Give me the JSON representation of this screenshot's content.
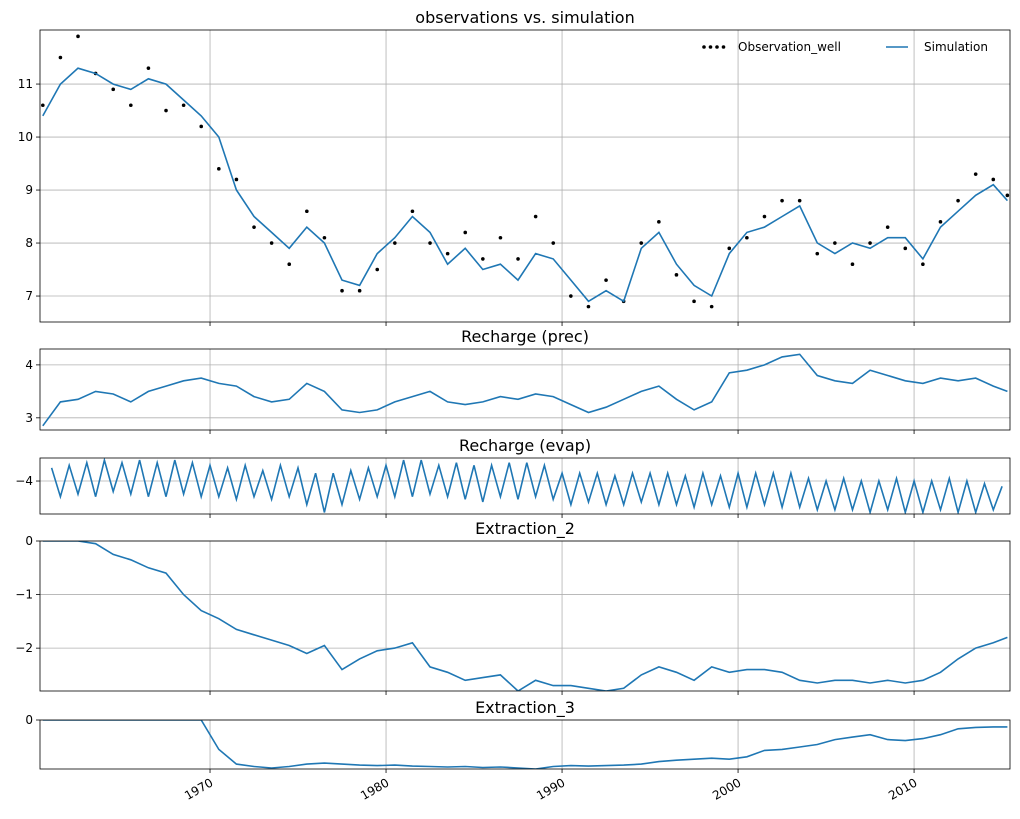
{
  "chart_data": [
    {
      "type": "line",
      "title": "observations vs. simulation",
      "legend": "upper right",
      "grid": true,
      "x": [
        1960.5,
        1961.5,
        1962.5,
        1963.5,
        1964.5,
        1965.5,
        1966.5,
        1967.5,
        1968.5,
        1969.5,
        1970.5,
        1971.5,
        1972.5,
        1973.5,
        1974.5,
        1975.5,
        1976.5,
        1977.5,
        1978.5,
        1979.5,
        1980.5,
        1981.5,
        1982.5,
        1983.5,
        1984.5,
        1985.5,
        1986.5,
        1987.5,
        1988.5,
        1989.5,
        1990.5,
        1991.5,
        1992.5,
        1993.5,
        1994.5,
        1995.5,
        1996.5,
        1997.5,
        1998.5,
        1999.5,
        2000.5,
        2001.5,
        2002.5,
        2003.5,
        2004.5,
        2005.5,
        2006.5,
        2007.5,
        2008.5,
        2009.5,
        2010.5,
        2011.5,
        2012.5,
        2013.5,
        2014.5,
        2015.3
      ],
      "series": [
        {
          "name": "Observation_well",
          "color": "#000000",
          "linestyle": "dotted",
          "values": [
            10.6,
            11.5,
            11.9,
            11.2,
            10.9,
            10.6,
            11.3,
            10.5,
            10.6,
            10.2,
            9.4,
            9.2,
            8.3,
            8.0,
            7.6,
            8.6,
            8.1,
            7.1,
            7.1,
            7.5,
            8.0,
            8.6,
            8.0,
            7.8,
            8.2,
            7.7,
            8.1,
            7.7,
            8.5,
            8.0,
            7.0,
            6.8,
            7.3,
            6.9,
            8.0,
            8.4,
            7.4,
            6.9,
            6.8,
            7.9,
            8.1,
            8.5,
            8.8,
            8.8,
            7.8,
            8.0,
            7.6,
            8.0,
            8.3,
            7.9,
            7.6,
            8.4,
            8.8,
            9.3,
            9.2,
            8.9
          ]
        },
        {
          "name": "Simulation",
          "color": "#1f77b4",
          "linestyle": "solid",
          "values": [
            10.4,
            11.0,
            11.3,
            11.2,
            11.0,
            10.9,
            11.1,
            11.0,
            10.7,
            10.4,
            10.0,
            9.0,
            8.5,
            8.2,
            7.9,
            8.3,
            8.0,
            7.3,
            7.2,
            7.8,
            8.1,
            8.5,
            8.2,
            7.6,
            7.9,
            7.5,
            7.6,
            7.3,
            7.8,
            7.7,
            7.3,
            6.9,
            7.1,
            6.9,
            7.9,
            8.2,
            7.6,
            7.2,
            7.0,
            7.8,
            8.2,
            8.3,
            8.5,
            8.7,
            8.0,
            7.8,
            8.0,
            7.9,
            8.1,
            8.1,
            7.7,
            8.3,
            8.6,
            8.9,
            9.1,
            8.8
          ]
        }
      ],
      "xlim": [
        1960.34,
        2015.45
      ],
      "xticks": [
        1970,
        1980,
        1990,
        2000,
        2010
      ],
      "ylim": [
        6.51,
        12.02
      ],
      "yticks": [
        7,
        8,
        9,
        10,
        11
      ]
    },
    {
      "type": "line",
      "title": "Recharge (prec)",
      "grid": true,
      "color": "#1f77b4",
      "x": [
        1960.5,
        1961.5,
        1962.5,
        1963.5,
        1964.5,
        1965.5,
        1966.5,
        1967.5,
        1968.5,
        1969.5,
        1970.5,
        1971.5,
        1972.5,
        1973.5,
        1974.5,
        1975.5,
        1976.5,
        1977.5,
        1978.5,
        1979.5,
        1980.5,
        1981.5,
        1982.5,
        1983.5,
        1984.5,
        1985.5,
        1986.5,
        1987.5,
        1988.5,
        1989.5,
        1990.5,
        1991.5,
        1992.5,
        1993.5,
        1994.5,
        1995.5,
        1996.5,
        1997.5,
        1998.5,
        1999.5,
        2000.5,
        2001.5,
        2002.5,
        2003.5,
        2004.5,
        2005.5,
        2006.5,
        2007.5,
        2008.5,
        2009.5,
        2010.5,
        2011.5,
        2012.5,
        2013.5,
        2014.5,
        2015.3
      ],
      "values": [
        2.85,
        3.3,
        3.35,
        3.5,
        3.45,
        3.3,
        3.5,
        3.6,
        3.7,
        3.75,
        3.65,
        3.6,
        3.4,
        3.3,
        3.35,
        3.65,
        3.5,
        3.15,
        3.1,
        3.15,
        3.3,
        3.4,
        3.5,
        3.3,
        3.25,
        3.3,
        3.4,
        3.35,
        3.45,
        3.4,
        3.25,
        3.1,
        3.2,
        3.35,
        3.5,
        3.6,
        3.35,
        3.15,
        3.3,
        3.85,
        3.9,
        4.0,
        4.15,
        4.2,
        3.8,
        3.7,
        3.65,
        3.9,
        3.8,
        3.7,
        3.65,
        3.75,
        3.7,
        3.75,
        3.6,
        3.5
      ],
      "xlim": [
        1960.34,
        2015.45
      ],
      "xticks": [
        1970,
        1980,
        1990,
        2000,
        2010
      ],
      "ylim": [
        2.77,
        4.3
      ],
      "yticks": [
        3,
        4
      ]
    },
    {
      "type": "line",
      "title": "Recharge (evap)",
      "grid": true,
      "color": "#1f77b4",
      "x": [
        1961,
        1961.5,
        1962,
        1962.5,
        1963,
        1963.5,
        1964,
        1964.5,
        1965,
        1965.5,
        1966,
        1966.5,
        1967,
        1967.5,
        1968,
        1968.5,
        1969,
        1969.5,
        1970,
        1970.5,
        1971,
        1971.5,
        1972,
        1972.5,
        1973,
        1973.5,
        1974,
        1974.5,
        1975,
        1975.5,
        1976,
        1976.5,
        1977,
        1977.5,
        1978,
        1978.5,
        1979,
        1979.5,
        1980,
        1980.5,
        1981,
        1981.5,
        1982,
        1982.5,
        1983,
        1983.5,
        1984,
        1984.5,
        1985,
        1985.5,
        1986,
        1986.5,
        1987,
        1987.5,
        1988,
        1988.5,
        1989,
        1989.5,
        1990,
        1990.5,
        1991,
        1991.5,
        1992,
        1992.5,
        1993,
        1993.5,
        1994,
        1994.5,
        1995,
        1995.5,
        1996,
        1996.5,
        1997,
        1997.5,
        1998,
        1998.5,
        1999,
        1999.5,
        2000,
        2000.5,
        2001,
        2001.5,
        2002,
        2002.5,
        2003,
        2003.5,
        2004,
        2004.5,
        2005,
        2005.5,
        2006,
        2006.5,
        2007,
        2007.5,
        2008,
        2008.5,
        2009,
        2009.5,
        2010,
        2010.5,
        2011,
        2011.5,
        2012,
        2012.5,
        2013,
        2013.5,
        2014,
        2014.5,
        2015
      ],
      "values": [
        -3.75,
        -4.3,
        -3.7,
        -4.25,
        -3.65,
        -4.3,
        -3.6,
        -4.2,
        -3.65,
        -4.25,
        -3.6,
        -4.3,
        -3.65,
        -4.3,
        -3.6,
        -4.25,
        -3.65,
        -4.3,
        -3.7,
        -4.3,
        -3.75,
        -4.35,
        -3.7,
        -4.3,
        -3.8,
        -4.35,
        -3.7,
        -4.3,
        -3.75,
        -4.45,
        -3.85,
        -4.6,
        -3.85,
        -4.45,
        -3.8,
        -4.35,
        -3.75,
        -4.3,
        -3.7,
        -4.3,
        -3.6,
        -4.3,
        -3.6,
        -4.25,
        -3.7,
        -4.3,
        -3.65,
        -4.35,
        -3.7,
        -4.4,
        -3.7,
        -4.3,
        -3.65,
        -4.35,
        -3.65,
        -4.3,
        -3.7,
        -4.35,
        -3.85,
        -4.45,
        -3.85,
        -4.4,
        -3.85,
        -4.45,
        -3.9,
        -4.45,
        -3.85,
        -4.4,
        -3.85,
        -4.45,
        -3.85,
        -4.45,
        -3.9,
        -4.5,
        -3.85,
        -4.45,
        -3.9,
        -4.5,
        -3.85,
        -4.5,
        -3.85,
        -4.45,
        -3.85,
        -4.5,
        -3.85,
        -4.5,
        -3.95,
        -4.55,
        -4.0,
        -4.55,
        -3.95,
        -4.55,
        -4.0,
        -4.6,
        -4.0,
        -4.55,
        -3.95,
        -4.6,
        -4.0,
        -4.6,
        -4.0,
        -4.55,
        -3.95,
        -4.6,
        -4.0,
        -4.6,
        -4.05,
        -4.55,
        -4.1
      ],
      "xlim": [
        1960.34,
        2015.45
      ],
      "xticks": [
        1970,
        1980,
        1990,
        2000,
        2010
      ],
      "ylim": [
        -4.63,
        -3.56
      ],
      "yticks": [
        {
          "value": -4,
          "label": "−4"
        }
      ]
    },
    {
      "type": "line",
      "title": "Extraction_2",
      "grid": true,
      "color": "#1f77b4",
      "x": [
        1960.5,
        1961.5,
        1962.5,
        1963.5,
        1964.5,
        1965.5,
        1966.5,
        1967.5,
        1968.5,
        1969.5,
        1970.5,
        1971.5,
        1972.5,
        1973.5,
        1974.5,
        1975.5,
        1976.5,
        1977.5,
        1978.5,
        1979.5,
        1980.5,
        1981.5,
        1982.5,
        1983.5,
        1984.5,
        1985.5,
        1986.5,
        1987.5,
        1988.5,
        1989.5,
        1990.5,
        1991.5,
        1992.5,
        1993.5,
        1994.5,
        1995.5,
        1996.5,
        1997.5,
        1998.5,
        1999.5,
        2000.5,
        2001.5,
        2002.5,
        2003.5,
        2004.5,
        2005.5,
        2006.5,
        2007.5,
        2008.5,
        2009.5,
        2010.5,
        2011.5,
        2012.5,
        2013.5,
        2014.5,
        2015.3
      ],
      "values": [
        0,
        0,
        0,
        -0.05,
        -0.25,
        -0.35,
        -0.5,
        -0.6,
        -1.0,
        -1.3,
        -1.45,
        -1.65,
        -1.75,
        -1.85,
        -1.95,
        -2.1,
        -1.95,
        -2.4,
        -2.2,
        -2.05,
        -2.0,
        -1.9,
        -2.35,
        -2.45,
        -2.6,
        -2.55,
        -2.5,
        -2.8,
        -2.6,
        -2.7,
        -2.7,
        -2.75,
        -2.8,
        -2.75,
        -2.5,
        -2.35,
        -2.45,
        -2.6,
        -2.35,
        -2.45,
        -2.4,
        -2.4,
        -2.45,
        -2.6,
        -2.65,
        -2.6,
        -2.6,
        -2.65,
        -2.6,
        -2.65,
        -2.6,
        -2.45,
        -2.2,
        -2.0,
        -1.9,
        -1.8
      ],
      "xlim": [
        1960.34,
        2015.45
      ],
      "xticks": [
        1970,
        1980,
        1990,
        2000,
        2010
      ],
      "ylim": [
        -2.8,
        0
      ],
      "yticks": [
        0,
        {
          "value": -1,
          "label": "−1"
        },
        {
          "value": -2,
          "label": "−2"
        }
      ]
    },
    {
      "type": "line",
      "title": "Extraction_3",
      "grid": true,
      "color": "#1f77b4",
      "x": [
        1960.5,
        1961.5,
        1962.5,
        1963.5,
        1964.5,
        1965.5,
        1966.5,
        1967.5,
        1968.5,
        1969.5,
        1970.5,
        1971.5,
        1972.5,
        1973.5,
        1974.5,
        1975.5,
        1976.5,
        1977.5,
        1978.5,
        1979.5,
        1980.5,
        1981.5,
        1982.5,
        1983.5,
        1984.5,
        1985.5,
        1986.5,
        1987.5,
        1988.5,
        1989.5,
        1990.5,
        1991.5,
        1992.5,
        1993.5,
        1994.5,
        1995.5,
        1996.5,
        1997.5,
        1998.5,
        1999.5,
        2000.5,
        2001.5,
        2002.5,
        2003.5,
        2004.5,
        2005.5,
        2006.5,
        2007.5,
        2008.5,
        2009.5,
        2010.5,
        2011.5,
        2012.5,
        2013.5,
        2014.5,
        2015.3
      ],
      "values": [
        0,
        0,
        0,
        0,
        0,
        0,
        0,
        0,
        0,
        0,
        -0.6,
        -0.9,
        -0.95,
        -0.98,
        -0.95,
        -0.9,
        -0.88,
        -0.9,
        -0.92,
        -0.93,
        -0.92,
        -0.94,
        -0.95,
        -0.96,
        -0.95,
        -0.97,
        -0.96,
        -0.98,
        -1.0,
        -0.95,
        -0.93,
        -0.94,
        -0.93,
        -0.92,
        -0.9,
        -0.85,
        -0.82,
        -0.8,
        -0.78,
        -0.8,
        -0.75,
        -0.62,
        -0.6,
        -0.55,
        -0.5,
        -0.4,
        -0.35,
        -0.3,
        -0.4,
        -0.42,
        -0.38,
        -0.3,
        -0.18,
        -0.15,
        -0.14,
        -0.14
      ],
      "xlim": [
        1960.34,
        2015.45
      ],
      "xticks": [
        1970,
        1980,
        1990,
        2000,
        2010
      ],
      "ylim": [
        -1,
        0
      ],
      "yticks": [
        0
      ]
    }
  ]
}
